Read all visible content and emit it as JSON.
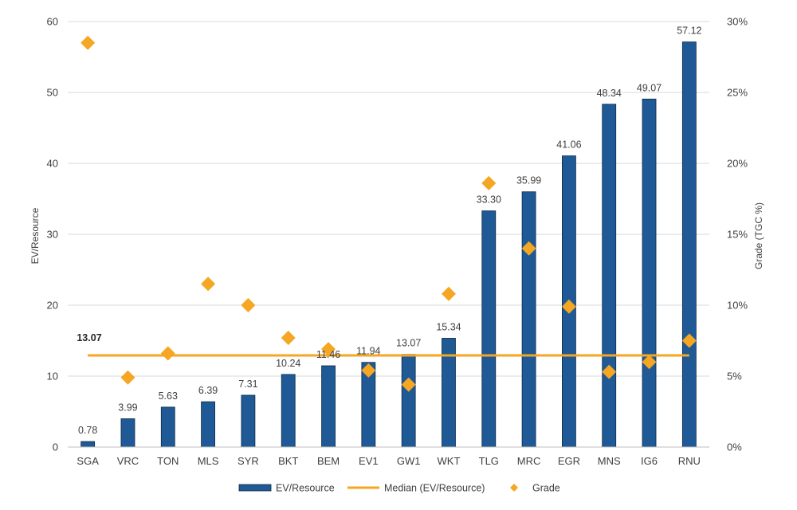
{
  "chart_data": {
    "type": "bar",
    "categories": [
      "SGA",
      "VRC",
      "TON",
      "MLS",
      "SYR",
      "BKT",
      "BEM",
      "EV1",
      "GW1",
      "WKT",
      "TLG",
      "MRC",
      "EGR",
      "MNS",
      "IG6",
      "RNU"
    ],
    "series": [
      {
        "name": "EV/Resource",
        "type": "bar",
        "axis": "left",
        "color": "#1f5a96",
        "values": [
          0.78,
          3.99,
          5.63,
          6.39,
          7.31,
          10.24,
          11.46,
          11.94,
          13.07,
          15.34,
          33.3,
          35.99,
          41.06,
          48.34,
          49.07,
          57.12
        ],
        "labels": [
          "0.78",
          "3.99",
          "5.63",
          "6.39",
          "7.31",
          "10.24",
          "11.46",
          "11.94",
          "13.07",
          "15.34",
          "33.30",
          "35.99",
          "41.06",
          "48.34",
          "49.07",
          "57.12"
        ]
      },
      {
        "name": "Median (EV/Resource)",
        "type": "line",
        "axis": "left",
        "color": "#f5a623",
        "value": 13.07,
        "label": "13.07"
      },
      {
        "name": "Grade",
        "type": "scatter",
        "axis": "right",
        "marker": "diamond",
        "color": "#f5a623",
        "values": [
          28.5,
          4.9,
          6.6,
          11.5,
          10.0,
          7.7,
          6.9,
          5.4,
          4.4,
          10.8,
          18.6,
          14.0,
          9.9,
          5.3,
          6.0,
          7.5
        ]
      }
    ],
    "ylabel": "EV/Resource",
    "y2label": "Grade (TGC %)",
    "ylim": [
      0,
      60
    ],
    "y2lim": [
      0,
      30
    ],
    "yticks": [
      "0",
      "10",
      "20",
      "30",
      "40",
      "50",
      "60"
    ],
    "y2ticks": [
      "0%",
      "5%",
      "10%",
      "15%",
      "20%",
      "25%",
      "30%"
    ],
    "grid": true,
    "legend_position": "bottom"
  }
}
